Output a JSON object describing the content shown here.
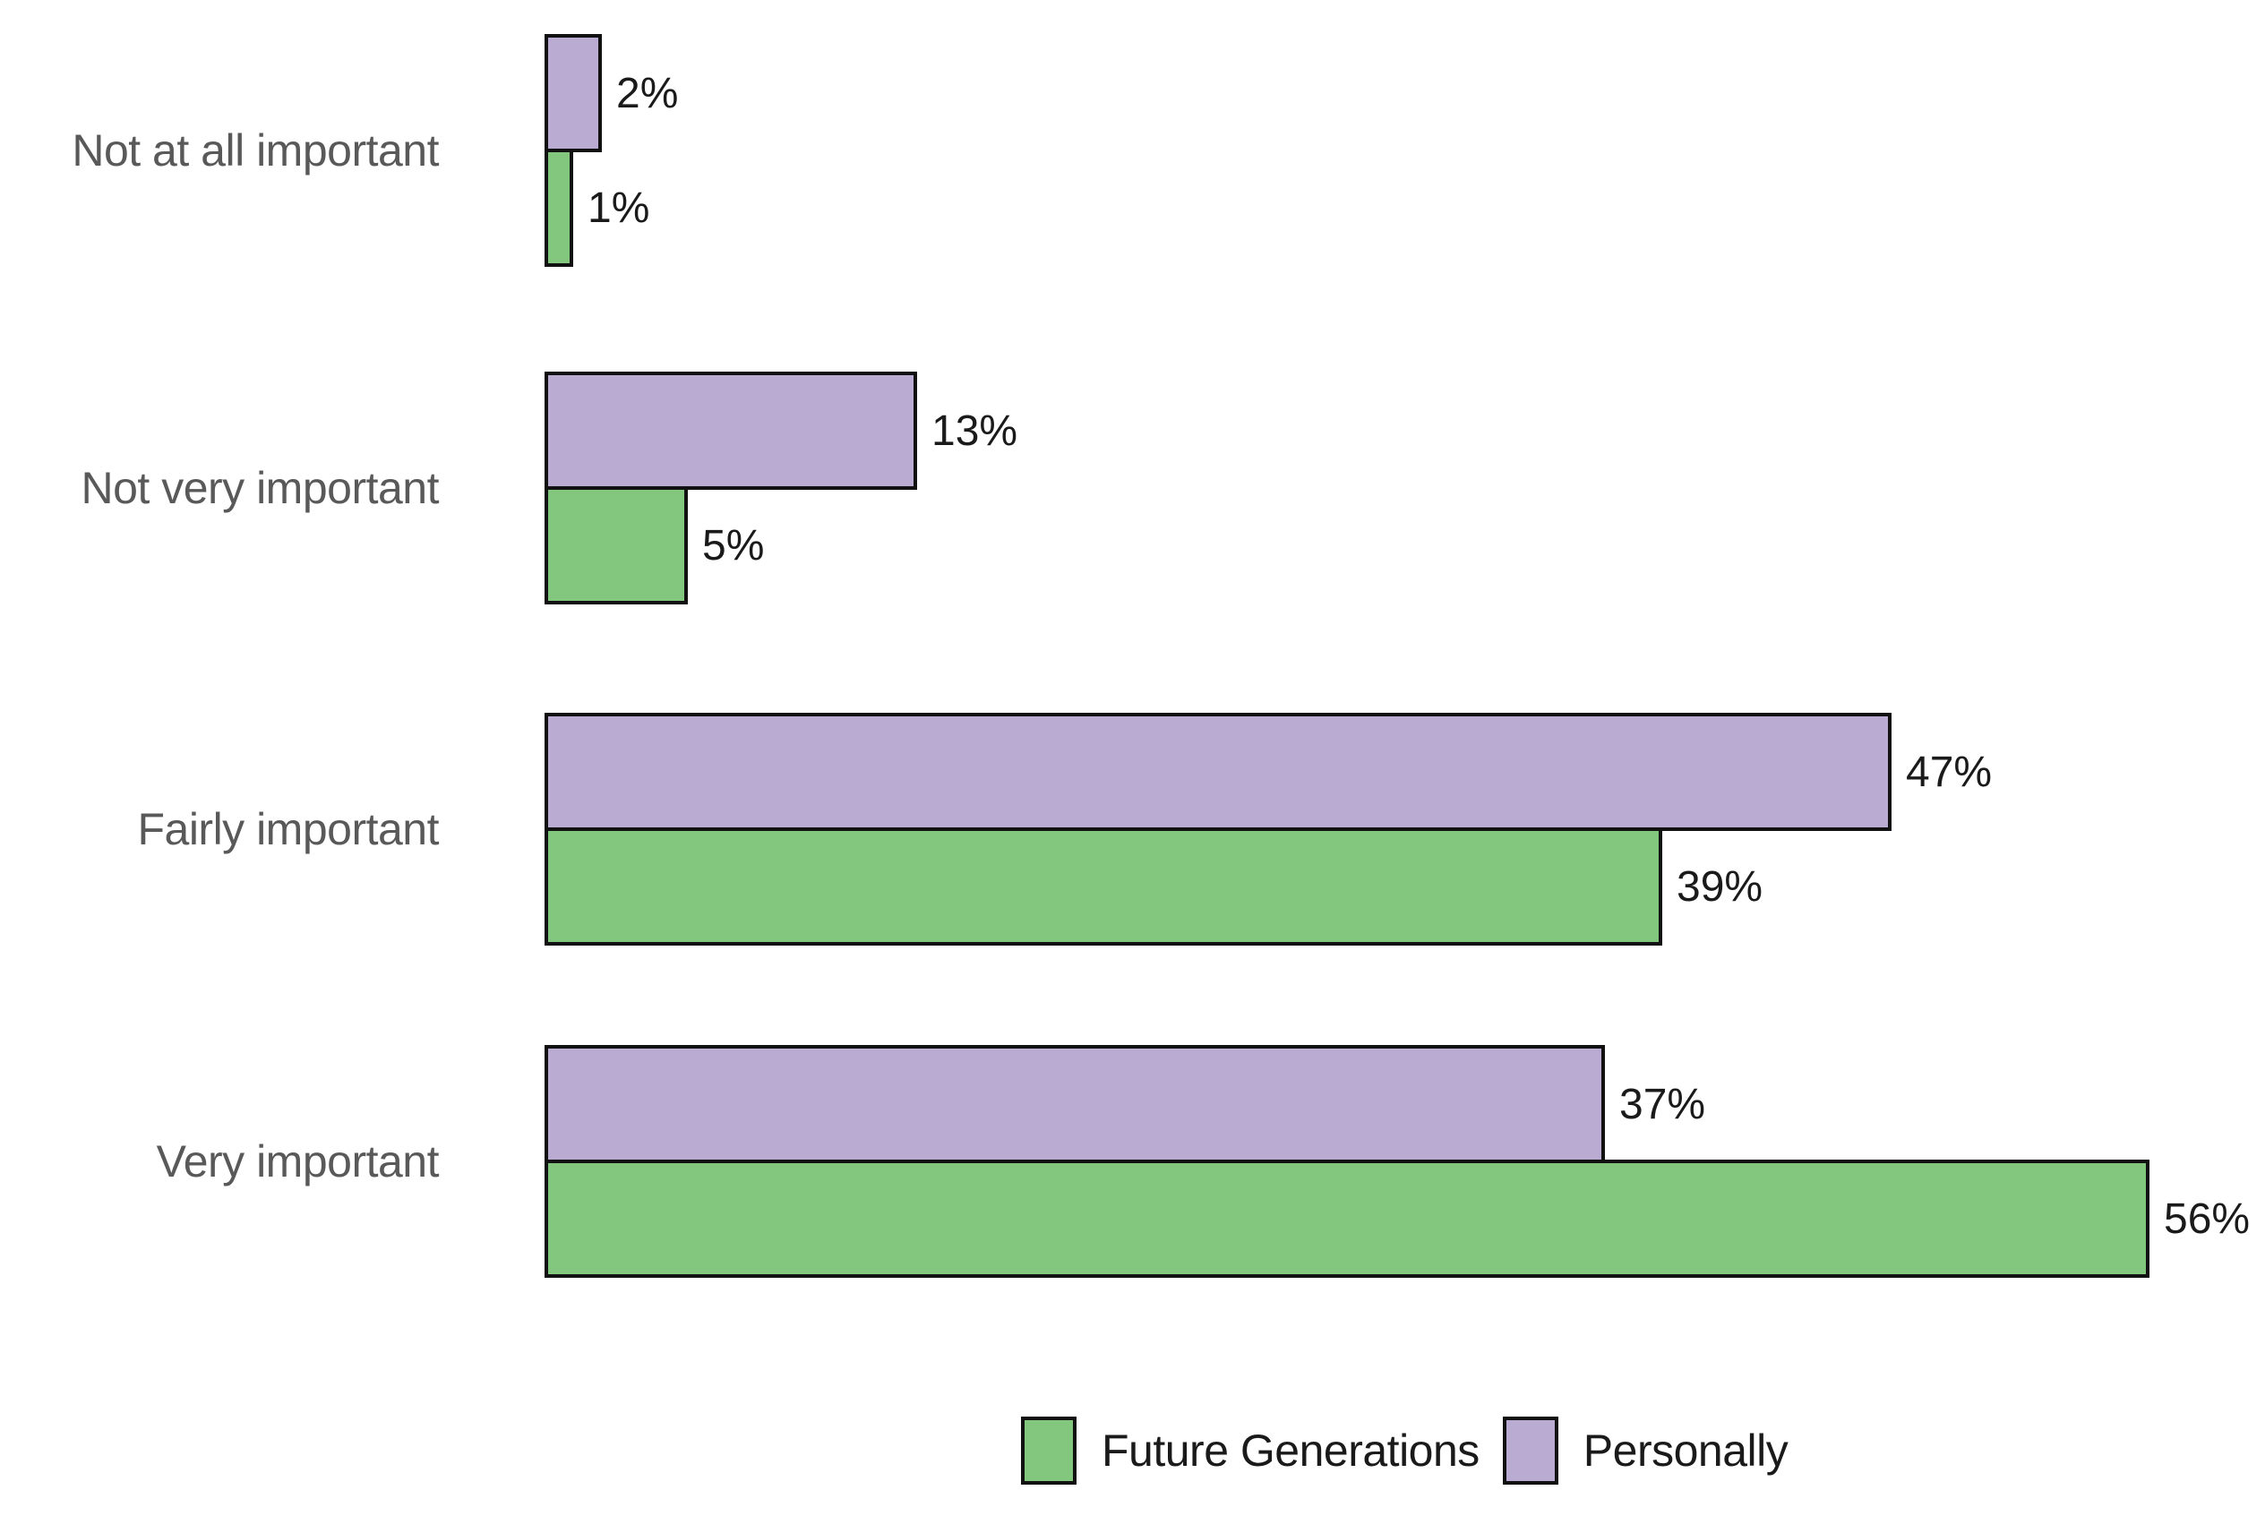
{
  "chart_data": {
    "type": "bar",
    "orientation": "horizontal",
    "title": "",
    "categories": [
      "Not at all important",
      "Not very important",
      "Fairly important",
      "Very important"
    ],
    "series": [
      {
        "name": "Personally",
        "color": "#B9ABD2",
        "values": [
          2,
          13,
          47,
          37
        ]
      },
      {
        "name": "Future Generations",
        "color": "#82C77D",
        "values": [
          1,
          5,
          39,
          56
        ]
      }
    ],
    "value_suffix": "%",
    "value_labels": {
      "Personally": [
        "2%",
        "13%",
        "47%",
        "37%"
      ],
      "Future Generations": [
        "1%",
        "5%",
        "39%",
        "56%"
      ]
    },
    "xlim": [
      0,
      60
    ],
    "grid": false,
    "axes_visible": false,
    "legend": {
      "position": "bottom",
      "entries": [
        {
          "label": "Future Generations",
          "color": "#82C77D"
        },
        {
          "label": "Personally",
          "color": "#B9ABD2"
        }
      ]
    },
    "colors": {
      "bar_border": "#111111",
      "category_label": "#595959",
      "value_label": "#1a1a1a",
      "background": "#FFFFFF"
    }
  }
}
